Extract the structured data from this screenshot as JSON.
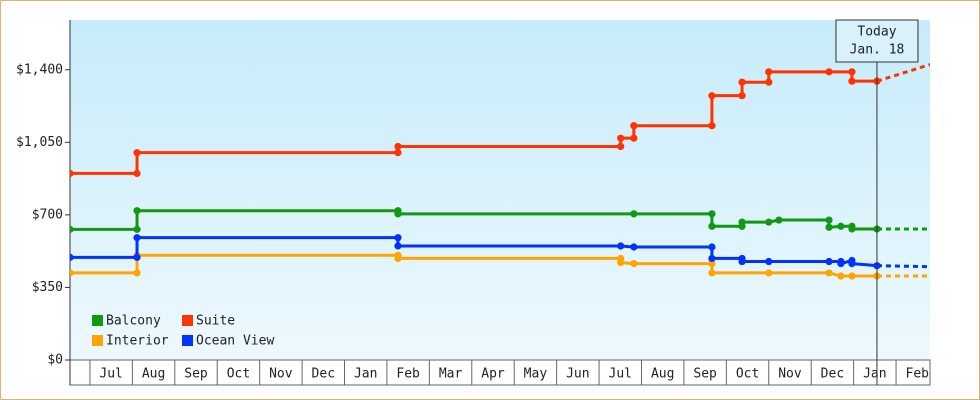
{
  "chart_data": {
    "type": "step-line",
    "xlim": [
      -0.47,
      19.8
    ],
    "xticks": [
      {
        "value": 0.5,
        "label": "Jul"
      },
      {
        "value": 1.5,
        "label": "Aug"
      },
      {
        "value": 2.5,
        "label": "Sep"
      },
      {
        "value": 3.5,
        "label": "Oct"
      },
      {
        "value": 4.5,
        "label": "Nov"
      },
      {
        "value": 5.5,
        "label": "Dec"
      },
      {
        "value": 6.5,
        "label": "Jan"
      },
      {
        "value": 7.5,
        "label": "Feb"
      },
      {
        "value": 8.5,
        "label": "Mar"
      },
      {
        "value": 9.5,
        "label": "Apr"
      },
      {
        "value": 10.5,
        "label": "May"
      },
      {
        "value": 11.5,
        "label": "Jun"
      },
      {
        "value": 12.5,
        "label": "Jul"
      },
      {
        "value": 13.5,
        "label": "Aug"
      },
      {
        "value": 14.5,
        "label": "Sep"
      },
      {
        "value": 15.5,
        "label": "Oct"
      },
      {
        "value": 16.5,
        "label": "Nov"
      },
      {
        "value": 17.5,
        "label": "Dec"
      },
      {
        "value": 18.5,
        "label": "Jan"
      },
      {
        "value": 19.5,
        "label": "Feb"
      }
    ],
    "ylim": [
      0,
      1640
    ],
    "yticks": [
      {
        "value": 0,
        "label": "$0"
      },
      {
        "value": 350,
        "label": "$350"
      },
      {
        "value": 700,
        "label": "$700"
      },
      {
        "value": 1050,
        "label": "$1,050"
      },
      {
        "value": 1400,
        "label": "$1,400"
      }
    ],
    "today": {
      "x": 18.55,
      "label": [
        "Today",
        "Jan. 18"
      ]
    },
    "series": [
      {
        "name": "Balcony",
        "color": "#119911",
        "x": [
          -0.47,
          1.11,
          1.11,
          7.26,
          7.26,
          12.82,
          14.66,
          14.66,
          15.37,
          15.37,
          16.0,
          16.24,
          17.42,
          17.42,
          17.7,
          17.96,
          17.96,
          18.55
        ],
        "values": [
          630,
          630,
          720,
          720,
          705,
          705,
          705,
          645,
          645,
          665,
          665,
          675,
          675,
          640,
          645,
          645,
          632,
          632
        ],
        "forecast": {
          "x": [
            18.55,
            19.8
          ],
          "values": [
            632,
            632
          ]
        }
      },
      {
        "name": "Suite",
        "color": "#ff3300",
        "x": [
          -0.47,
          1.11,
          1.11,
          7.26,
          7.26,
          12.51,
          12.51,
          12.82,
          12.82,
          14.66,
          14.66,
          15.37,
          15.37,
          16.0,
          16.0,
          17.42,
          17.96,
          17.96,
          18.55
        ],
        "values": [
          900,
          900,
          1000,
          1000,
          1030,
          1030,
          1070,
          1070,
          1130,
          1130,
          1275,
          1275,
          1340,
          1340,
          1390,
          1390,
          1390,
          1345,
          1345
        ],
        "forecast": {
          "x": [
            18.55,
            19.8
          ],
          "values": [
            1345,
            1425
          ]
        }
      },
      {
        "name": "Interior",
        "color": "#ffa500",
        "x": [
          -0.47,
          1.11,
          1.11,
          7.26,
          7.26,
          12.51,
          12.51,
          12.82,
          14.66,
          14.66,
          16.0,
          17.42,
          17.7,
          17.96,
          18.55
        ],
        "values": [
          420,
          420,
          505,
          505,
          490,
          490,
          470,
          465,
          465,
          420,
          420,
          420,
          405,
          405,
          405
        ],
        "forecast": {
          "x": [
            18.55,
            19.8
          ],
          "values": [
            405,
            405
          ]
        }
      },
      {
        "name": "Ocean View",
        "color": "#0033ff",
        "x": [
          -0.47,
          1.11,
          1.11,
          7.26,
          7.26,
          12.51,
          12.82,
          14.66,
          14.66,
          15.37,
          15.37,
          16.0,
          17.42,
          17.7,
          17.7,
          17.96,
          17.96,
          18.55
        ],
        "values": [
          495,
          495,
          590,
          590,
          550,
          550,
          545,
          545,
          490,
          490,
          475,
          475,
          475,
          475,
          465,
          480,
          465,
          455
        ],
        "forecast": {
          "x": [
            18.55,
            19.8
          ],
          "values": [
            455,
            450
          ]
        }
      }
    ]
  }
}
